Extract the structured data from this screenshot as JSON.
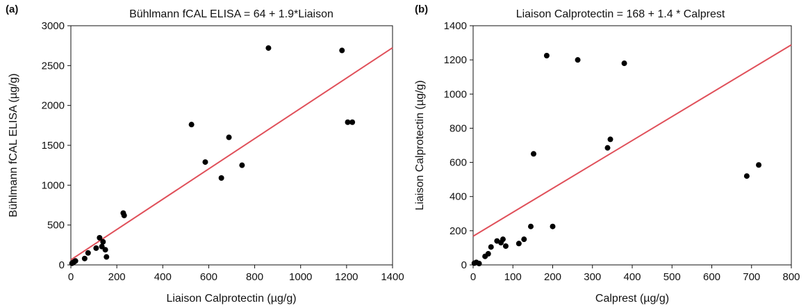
{
  "chart_data": [
    {
      "type": "scatter",
      "panel_label": "(a)",
      "title": "Bühlmann fCAL ELISA = 64 + 1.9*Liaison",
      "xlabel": "Liaison Calprotectin (µg/g)",
      "ylabel": "Bühlmann fCAL ELISA (µg/g)",
      "xlim": [
        0,
        1400
      ],
      "ylim": [
        0,
        3000
      ],
      "xticks": [
        "0",
        "200",
        "400",
        "600",
        "800",
        "1000",
        "1200",
        "1400"
      ],
      "yticks": [
        "0",
        "500",
        "1000",
        "1500",
        "2000",
        "2500",
        "3000"
      ],
      "grid": false,
      "point_color": "#000000",
      "line_color": "#e0505a",
      "regression": {
        "intercept": 64,
        "slope": 1.9
      },
      "points": [
        {
          "x": 5,
          "y": 20
        },
        {
          "x": 10,
          "y": 30
        },
        {
          "x": 15,
          "y": 40
        },
        {
          "x": 20,
          "y": 50
        },
        {
          "x": 60,
          "y": 80
        },
        {
          "x": 75,
          "y": 150
        },
        {
          "x": 110,
          "y": 210
        },
        {
          "x": 125,
          "y": 340
        },
        {
          "x": 135,
          "y": 230
        },
        {
          "x": 140,
          "y": 290
        },
        {
          "x": 150,
          "y": 190
        },
        {
          "x": 155,
          "y": 100
        },
        {
          "x": 228,
          "y": 650
        },
        {
          "x": 232,
          "y": 620
        },
        {
          "x": 525,
          "y": 1760
        },
        {
          "x": 585,
          "y": 1290
        },
        {
          "x": 655,
          "y": 1090
        },
        {
          "x": 688,
          "y": 1600
        },
        {
          "x": 745,
          "y": 1250
        },
        {
          "x": 860,
          "y": 2720
        },
        {
          "x": 1180,
          "y": 2690
        },
        {
          "x": 1205,
          "y": 1790
        },
        {
          "x": 1225,
          "y": 1790
        }
      ]
    },
    {
      "type": "scatter",
      "panel_label": "(b)",
      "title": "Liaison Calprotectin = 168 + 1.4 * Calprest",
      "xlabel": "Calprest (µg/g)",
      "ylabel": "Liaison Calprotectin (µg/g)",
      "xlim": [
        0,
        800
      ],
      "ylim": [
        0,
        1400
      ],
      "xticks": [
        "0",
        "100",
        "200",
        "300",
        "400",
        "500",
        "600",
        "700",
        "800"
      ],
      "yticks": [
        "0",
        "200",
        "400",
        "600",
        "800",
        "1000",
        "1200",
        "1400"
      ],
      "grid": false,
      "point_color": "#000000",
      "line_color": "#e0505a",
      "regression": {
        "intercept": 168,
        "slope": 1.4
      },
      "points": [
        {
          "x": 3,
          "y": 10
        },
        {
          "x": 8,
          "y": 15
        },
        {
          "x": 15,
          "y": 8
        },
        {
          "x": 30,
          "y": 50
        },
        {
          "x": 38,
          "y": 65
        },
        {
          "x": 45,
          "y": 105
        },
        {
          "x": 60,
          "y": 140
        },
        {
          "x": 70,
          "y": 130
        },
        {
          "x": 75,
          "y": 150
        },
        {
          "x": 82,
          "y": 110
        },
        {
          "x": 115,
          "y": 125
        },
        {
          "x": 128,
          "y": 150
        },
        {
          "x": 145,
          "y": 225
        },
        {
          "x": 152,
          "y": 650
        },
        {
          "x": 185,
          "y": 1225
        },
        {
          "x": 200,
          "y": 225
        },
        {
          "x": 263,
          "y": 1200
        },
        {
          "x": 338,
          "y": 685
        },
        {
          "x": 345,
          "y": 735
        },
        {
          "x": 380,
          "y": 1180
        },
        {
          "x": 688,
          "y": 520
        },
        {
          "x": 718,
          "y": 585
        }
      ]
    }
  ]
}
